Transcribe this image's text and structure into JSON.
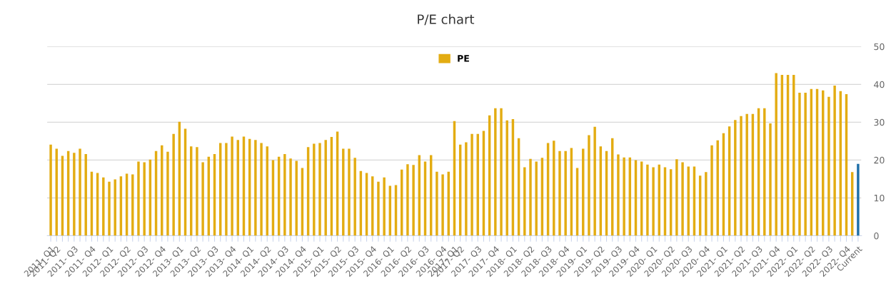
{
  "chart_data": {
    "type": "bar",
    "title": "P/E chart",
    "categories": [
      "2011- Q1",
      "2011- Q2",
      null,
      null,
      "2011- Q3",
      null,
      null,
      "2011- Q4",
      null,
      null,
      "2012- Q1",
      null,
      null,
      "2012- Q2",
      null,
      null,
      "2012- Q3",
      null,
      null,
      "2012- Q4",
      null,
      null,
      "2013- Q1",
      null,
      null,
      "2013- Q2",
      null,
      null,
      "2013- Q3",
      null,
      null,
      "2013- Q4",
      null,
      null,
      "2014- Q1",
      null,
      null,
      "2014- Q2",
      null,
      null,
      "2014- Q3",
      null,
      null,
      "2014- Q4",
      null,
      null,
      "2015- Q1",
      null,
      null,
      "2015- Q2",
      null,
      null,
      "2015- Q3",
      null,
      null,
      "2015- Q4",
      null,
      null,
      "2016- Q1",
      null,
      null,
      "2016- Q2",
      null,
      null,
      "2016- Q3",
      null,
      null,
      "2016- Q4",
      null,
      "2017- Q1",
      "2017- Q2",
      null,
      null,
      "2017- Q3",
      null,
      null,
      "2017- Q4",
      null,
      null,
      "2018- Q1",
      null,
      null,
      "2018- Q2",
      null,
      null,
      "2018- Q3",
      null,
      null,
      "2018- Q4",
      null,
      null,
      "2019- Q1",
      null,
      null,
      "2019- Q2",
      null,
      null,
      "2019- Q3",
      null,
      null,
      "2019- Q4",
      null,
      null,
      "2020- Q1",
      null,
      null,
      "2020- Q2",
      null,
      null,
      "2020- Q3",
      null,
      null,
      "2020- Q4",
      null,
      null,
      "2021- Q1",
      null,
      null,
      "2021- Q2",
      null,
      null,
      "2021- Q3",
      null,
      null,
      "2021- Q4",
      null,
      null,
      "2022- Q1",
      null,
      null,
      "2022- Q2",
      null,
      null,
      "2022- Q3",
      null,
      null,
      "2022- Q4",
      null,
      "Current"
    ],
    "series": [
      {
        "name": "PE",
        "color": "#e3ac12",
        "values": [
          24.1,
          23.0,
          21.1,
          22.4,
          21.9,
          23.0,
          21.6,
          16.9,
          16.6,
          15.4,
          14.3,
          14.9,
          15.7,
          16.4,
          16.2,
          19.6,
          19.4,
          20.1,
          22.4,
          23.9,
          22.2,
          26.9,
          30.1,
          28.3,
          23.6,
          23.4,
          19.4,
          20.9,
          21.6,
          24.5,
          24.5,
          26.2,
          25.3,
          26.2,
          25.6,
          25.3,
          24.5,
          23.6,
          20.0,
          20.9,
          21.6,
          20.4,
          19.8,
          17.9,
          23.4,
          24.3,
          24.5,
          25.3,
          26.1,
          27.5,
          23.0,
          23.0,
          20.6,
          17.1,
          16.6,
          15.7,
          14.3,
          15.4,
          13.2,
          13.4,
          17.5,
          18.9,
          18.7,
          21.3,
          19.6,
          21.3,
          16.9,
          16.2,
          16.9,
          30.3,
          24.1,
          24.7,
          26.9,
          26.9,
          27.7,
          31.8,
          33.7,
          33.7,
          30.5,
          30.8,
          25.8,
          18.1,
          20.3,
          19.6,
          20.6,
          24.5,
          25.1,
          22.4,
          22.4,
          23.2,
          17.9,
          23.0,
          26.6,
          28.8,
          23.6,
          22.4,
          25.8,
          21.5,
          20.7,
          20.7,
          20.0,
          19.6,
          18.8,
          18.1,
          18.8,
          18.1,
          17.6,
          20.2,
          19.4,
          18.3,
          18.3,
          15.9,
          16.8,
          23.9,
          25.2,
          27.1,
          28.9,
          30.6,
          31.6,
          32.2,
          32.2,
          33.7,
          33.7,
          29.7,
          43.0,
          42.5,
          42.5,
          42.5,
          37.8,
          37.8,
          38.8,
          38.8,
          38.4,
          36.7,
          39.7,
          38.2,
          37.4,
          16.8,
          19.0
        ],
        "colors": [
          "#e3ac12",
          "#e3ac12",
          "#e3ac12",
          "#e3ac12",
          "#e3ac12",
          "#e3ac12",
          "#e3ac12",
          "#e3ac12",
          "#e3ac12",
          "#e3ac12",
          "#e3ac12",
          "#e3ac12",
          "#e3ac12",
          "#e3ac12",
          "#e3ac12",
          "#e3ac12",
          "#e3ac12",
          "#e3ac12",
          "#e3ac12",
          "#e3ac12",
          "#e3ac12",
          "#e3ac12",
          "#e3ac12",
          "#e3ac12",
          "#e3ac12",
          "#e3ac12",
          "#e3ac12",
          "#e3ac12",
          "#e3ac12",
          "#e3ac12",
          "#e3ac12",
          "#e3ac12",
          "#e3ac12",
          "#e3ac12",
          "#e3ac12",
          "#e3ac12",
          "#e3ac12",
          "#e3ac12",
          "#e3ac12",
          "#e3ac12",
          "#e3ac12",
          "#e3ac12",
          "#e3ac12",
          "#e3ac12",
          "#e3ac12",
          "#e3ac12",
          "#e3ac12",
          "#e3ac12",
          "#e3ac12",
          "#e3ac12",
          "#e3ac12",
          "#e3ac12",
          "#e3ac12",
          "#e3ac12",
          "#e3ac12",
          "#e3ac12",
          "#e3ac12",
          "#e3ac12",
          "#e3ac12",
          "#e3ac12",
          "#e3ac12",
          "#e3ac12",
          "#e3ac12",
          "#e3ac12",
          "#e3ac12",
          "#e3ac12",
          "#e3ac12",
          "#e3ac12",
          "#e3ac12",
          "#e3ac12",
          "#e3ac12",
          "#e3ac12",
          "#e3ac12",
          "#e3ac12",
          "#e3ac12",
          "#e3ac12",
          "#e3ac12",
          "#e3ac12",
          "#e3ac12",
          "#e3ac12",
          "#e3ac12",
          "#e3ac12",
          "#e3ac12",
          "#e3ac12",
          "#e3ac12",
          "#e3ac12",
          "#e3ac12",
          "#e3ac12",
          "#e3ac12",
          "#e3ac12",
          "#e3ac12",
          "#e3ac12",
          "#e3ac12",
          "#e3ac12",
          "#e3ac12",
          "#e3ac12",
          "#e3ac12",
          "#e3ac12",
          "#e3ac12",
          "#e3ac12",
          "#e3ac12",
          "#e3ac12",
          "#e3ac12",
          "#e3ac12",
          "#e3ac12",
          "#e3ac12",
          "#e3ac12",
          "#e3ac12",
          "#e3ac12",
          "#e3ac12",
          "#e3ac12",
          "#e3ac12",
          "#e3ac12",
          "#e3ac12",
          "#e3ac12",
          "#e3ac12",
          "#e3ac12",
          "#e3ac12",
          "#e3ac12",
          "#e3ac12",
          "#e3ac12",
          "#e3ac12",
          "#e3ac12",
          "#e3ac12",
          "#e3ac12",
          "#e3ac12",
          "#e3ac12",
          "#e3ac12",
          "#e3ac12",
          "#e3ac12",
          "#e3ac12",
          "#e3ac12",
          "#e3ac12",
          "#e3ac12",
          "#e3ac12",
          "#e3ac12",
          "#e3ac12",
          "#e3ac12",
          "#1f6fa8"
        ]
      }
    ],
    "ylim": [
      0,
      50
    ],
    "yticks": [
      0,
      10,
      20,
      30,
      40,
      50
    ],
    "grid": "y",
    "legend": "top"
  }
}
